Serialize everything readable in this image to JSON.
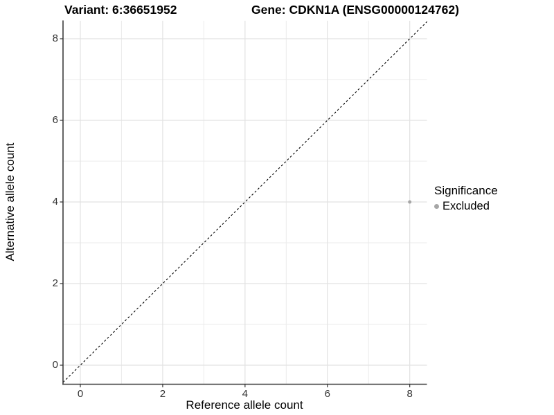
{
  "titles": {
    "variant": "Variant: 6:36651952",
    "gene": "Gene: CDKN1A (ENSG00000124762)"
  },
  "chart_data": {
    "type": "scatter",
    "title_left": "Variant: 6:36651952",
    "title_right": "Gene: CDKN1A (ENSG00000124762)",
    "xlabel": "Reference allele count",
    "ylabel": "Alternative allele count",
    "xlim": [
      -0.42,
      8.42
    ],
    "ylim": [
      -0.46,
      8.44
    ],
    "x_ticks": [
      0,
      2,
      4,
      6,
      8
    ],
    "y_ticks": [
      0,
      2,
      4,
      6,
      8
    ],
    "x_minor_ticks": [
      1,
      3,
      5,
      7
    ],
    "y_minor_ticks": [
      1,
      3,
      5,
      7
    ],
    "grid": "major-and-minor",
    "series": [
      {
        "name": "Excluded",
        "color": "#a6a6a6",
        "points": [
          {
            "x": 8,
            "y": 4
          }
        ]
      }
    ],
    "reference_line": {
      "equation": "y = x",
      "style": "dashed",
      "color": "#000000"
    },
    "legend": {
      "title": "Significance",
      "position": "right",
      "entries": [
        {
          "label": "Excluded",
          "color": "#a6a6a6",
          "marker": "circle"
        }
      ]
    }
  },
  "colors": {
    "background": "#ffffff",
    "grid_major": "#e2e2e2",
    "grid_minor": "#ebebeb",
    "axis_line": "#3c3c3c",
    "tick_mark": "#333333",
    "tick_label": "#333333",
    "text": "#000000",
    "point": "#a6a6a6"
  }
}
